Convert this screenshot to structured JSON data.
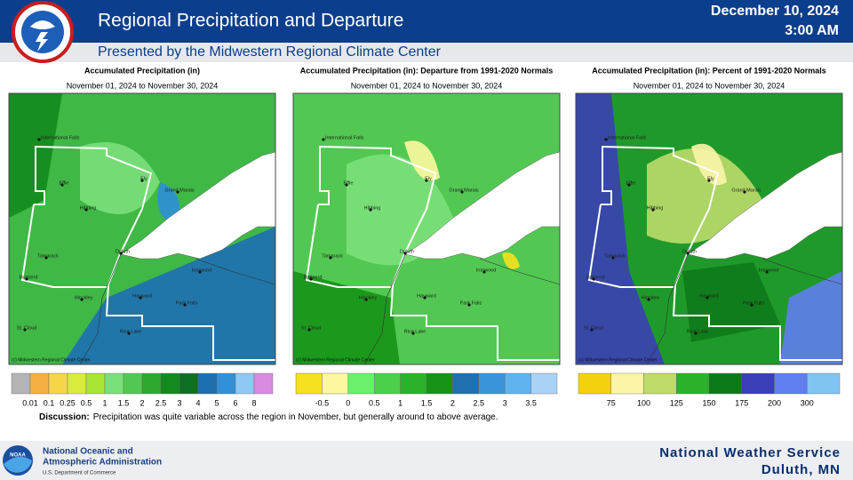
{
  "header": {
    "title": "Regional Precipitation and Departure",
    "subtitle": "Presented by the Midwestern Regional Climate Center",
    "date": "December 10, 2024",
    "time": "3:00 AM"
  },
  "panels": [
    {
      "title": "Accumulated Precipitation (in)",
      "subtitle": "November 01, 2024 to November 30, 2024",
      "credit": "(c) Midwestern Regional Climate Center",
      "legend": {
        "colors": [
          "#b4b4b4",
          "#f5b041",
          "#f7d54a",
          "#d9ec3b",
          "#a6e633",
          "#7be07a",
          "#52c852",
          "#2fa82f",
          "#138a1c",
          "#0f6f24",
          "#1c6fb0",
          "#3290d8",
          "#8fc8f2",
          "#d88be0"
        ],
        "labels": [
          "0.01",
          "0.1",
          "0.25",
          "0.5",
          "1",
          "1.5",
          "2",
          "2.5",
          "3",
          "4",
          "5",
          "6",
          "8"
        ]
      }
    },
    {
      "title": "Accumulated Precipitation (in): Departure from 1991-2020 Normals",
      "subtitle": "November 01, 2024 to November 30, 2024",
      "credit": "(c) Midwestern Regional Climate Center",
      "legend": {
        "colors": [
          "#f5e11e",
          "#fdf8a0",
          "#6af06a",
          "#4cd04c",
          "#2bb22b",
          "#169316",
          "#1e70b0",
          "#3a95d8",
          "#5fb3ef",
          "#a8d3f6"
        ],
        "labels": [
          "-0.5",
          "0",
          "0.5",
          "1",
          "1.5",
          "2",
          "2.5",
          "3",
          "3.5"
        ]
      }
    },
    {
      "title": "Accumulated Precipitation (in): Percent of 1991-2020 Normals",
      "subtitle": "November 01, 2024 to November 30, 2024",
      "credit": "(c) Midwestern Regional Climate Center",
      "legend": {
        "colors": [
          "#f3d10e",
          "#fbf5a8",
          "#bddc6a",
          "#2bb22b",
          "#0d7a1a",
          "#3a3fb5",
          "#5f7ef0",
          "#7fc4f3"
        ],
        "labels": [
          "75",
          "100",
          "125",
          "150",
          "175",
          "200",
          "300"
        ]
      }
    }
  ],
  "cities": [
    "International Falls",
    "Effie",
    "Ely",
    "Grand Marais",
    "Hibbing",
    "Duluth",
    "Tamarack",
    "Ironwood",
    "Brainerd",
    "Hinckley",
    "Hayward",
    "Park Falls",
    "St. Cloud",
    "Rice Lake"
  ],
  "discussion": {
    "label": "Discussion:",
    "text": "Precipitation was quite variable across the region in November, but generally around to above average."
  },
  "footer": {
    "agency_line1": "National Oceanic and",
    "agency_line2": "Atmospheric Administration",
    "department": "U.S. Department of Commerce",
    "office_line1": "National Weather Service",
    "office_line2": "Duluth, MN"
  }
}
